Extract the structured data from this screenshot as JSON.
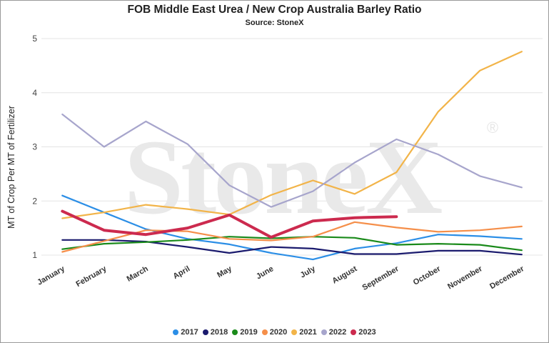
{
  "chart_data": {
    "type": "line",
    "title": "FOB Middle East Urea / New Crop Australia Barley Ratio",
    "subtitle": "Source: StoneX",
    "ylabel": "MT of Crop Per MT of Fertilizer",
    "xlabel": "",
    "watermark": "StoneX",
    "watermark_mark": "®",
    "ylim": [
      1,
      5
    ],
    "yticks": [
      1,
      2,
      3,
      4,
      5
    ],
    "grid": "horizontal",
    "legend_position": "bottom",
    "categories": [
      "January",
      "February",
      "March",
      "April",
      "May",
      "June",
      "July",
      "August",
      "September",
      "October",
      "November",
      "December"
    ],
    "series": [
      {
        "name": "2017",
        "color": "#2b8ee6",
        "width": 2.2,
        "values": [
          2.1,
          1.79,
          1.48,
          1.3,
          1.2,
          1.04,
          0.92,
          1.12,
          1.22,
          1.38,
          1.35,
          1.3
        ]
      },
      {
        "name": "2018",
        "color": "#1b1b6e",
        "width": 2.2,
        "values": [
          1.28,
          1.28,
          1.25,
          1.15,
          1.04,
          1.15,
          1.12,
          1.02,
          1.02,
          1.08,
          1.08,
          1.01
        ]
      },
      {
        "name": "2019",
        "color": "#1a8a1a",
        "width": 2.2,
        "values": [
          1.11,
          1.21,
          1.24,
          1.28,
          1.34,
          1.31,
          1.34,
          1.32,
          1.19,
          1.21,
          1.19,
          1.09
        ]
      },
      {
        "name": "2020",
        "color": "#f58f4a",
        "width": 2.2,
        "values": [
          1.06,
          1.26,
          1.46,
          1.44,
          1.3,
          1.27,
          1.34,
          1.61,
          1.51,
          1.43,
          1.46,
          1.53
        ]
      },
      {
        "name": "2021",
        "color": "#f2b449",
        "width": 2.2,
        "values": [
          1.68,
          1.79,
          1.93,
          1.85,
          1.75,
          2.11,
          2.38,
          2.13,
          2.53,
          3.65,
          4.41,
          4.76
        ]
      },
      {
        "name": "2022",
        "color": "#a7a5cc",
        "width": 2.2,
        "values": [
          3.6,
          3.0,
          3.47,
          3.05,
          2.29,
          1.89,
          2.18,
          2.71,
          3.14,
          2.86,
          2.46,
          2.25
        ]
      },
      {
        "name": "2023",
        "color": "#cc2a4e",
        "width": 4,
        "values": [
          1.81,
          1.46,
          1.38,
          1.5,
          1.74,
          1.33,
          1.63,
          1.69,
          1.71,
          null,
          null,
          null
        ]
      }
    ]
  }
}
